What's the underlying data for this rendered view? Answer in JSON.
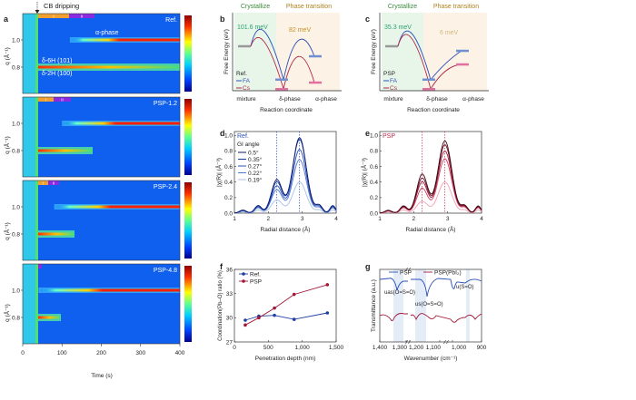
{
  "panel_a": {
    "label": "a",
    "annotation": "CB dripping",
    "ylabel": "q (Å⁻¹)",
    "xlabel": "Time (s)",
    "xticks": [
      "0",
      "100",
      "200",
      "300",
      "400"
    ],
    "yticks": [
      "1.0",
      "0.8"
    ],
    "stage_labels": [
      "I",
      "II"
    ],
    "alpha_label": "α-phase",
    "delta6h_label": "δ-6H (101)",
    "delta2h_label": "δ-2H (100)",
    "samples": [
      "Ref.",
      "PSP-1.2",
      "PSP-2.4",
      "PSP-4.8"
    ],
    "colormap": [
      "#00008f",
      "#0060ff",
      "#00e0ff",
      "#80ff80",
      "#ffe000",
      "#ff4000",
      "#8f0000"
    ]
  },
  "panel_b": {
    "label": "b",
    "region1": "Crystallize",
    "region2": "Phase transition",
    "barrier1": "101.6 meV",
    "barrier2": "82 meV",
    "ylabel": "Free Energy (eV)",
    "xlabel": "Reaction coordinate",
    "xcats": [
      "mixture",
      "δ-phase",
      "α-phase"
    ],
    "legend_title": "Ref.",
    "legend": [
      "FA",
      "Cs"
    ]
  },
  "panel_c": {
    "label": "c",
    "region1": "Crystallize",
    "region2": "Phase transition",
    "barrier1": "35.3 meV",
    "barrier2": "6 meV",
    "ylabel": "Free Energy (eV)",
    "xlabel": "Reaction coordinate",
    "xcats": [
      "mixture",
      "δ-phase",
      "α-phase"
    ],
    "legend_title": "PSP",
    "legend": [
      "FA",
      "Cs"
    ]
  },
  "chart_data": [
    {
      "panel": "d",
      "type": "line",
      "tag": "Ref.",
      "legend_title": "GI angle",
      "xlabel": "Radial distance (Å)",
      "ylabel": "|χ(R)| (Å⁻³)",
      "xlim": [
        1,
        4
      ],
      "ylim": [
        0,
        1.05
      ],
      "xticks": [
        "1",
        "2",
        "3",
        "4"
      ],
      "yticks": [
        "0.0",
        "0.2",
        "0.4",
        "0.6",
        "0.8",
        "1.0"
      ],
      "dashed_lines_x": [
        2.25,
        2.92
      ],
      "series": [
        {
          "name": "0.5°",
          "color": "#0a1a6e",
          "peak1": 0.43,
          "peak2": 0.97
        },
        {
          "name": "0.35°",
          "color": "#1a3a9e",
          "peak1": 0.4,
          "peak2": 0.95
        },
        {
          "name": "0.27°",
          "color": "#2a4fb8",
          "peak1": 0.35,
          "peak2": 0.82
        },
        {
          "name": "0.22°",
          "color": "#4f78d0",
          "peak1": 0.3,
          "peak2": 0.69
        },
        {
          "name": "0.19°",
          "color": "#a8bfe8",
          "peak1": 0.17,
          "peak2": 0.4
        }
      ]
    },
    {
      "panel": "e",
      "type": "line",
      "tag": "PSP",
      "xlabel": "Radial distance (Å)",
      "ylabel": "|χ(R)| (Å⁻³)",
      "xlim": [
        1,
        4
      ],
      "ylim": [
        0,
        1.05
      ],
      "xticks": [
        "1",
        "2",
        "3",
        "4"
      ],
      "yticks": [
        "0.0",
        "0.2",
        "0.4",
        "0.6",
        "0.8",
        "1.0"
      ],
      "dashed_lines_x": [
        2.25,
        2.92
      ],
      "series": [
        {
          "color": "#3a0a14",
          "peak1": 0.5,
          "peak2": 0.93
        },
        {
          "color": "#6e1028",
          "peak1": 0.45,
          "peak2": 0.88
        },
        {
          "color": "#a01838",
          "peak1": 0.4,
          "peak2": 0.8
        },
        {
          "color": "#d04060",
          "peak1": 0.32,
          "peak2": 0.7
        },
        {
          "color": "#f0a0b4",
          "peak1": 0.15,
          "peak2": 0.4
        }
      ]
    },
    {
      "panel": "f",
      "type": "line",
      "xlabel": "Penetration depth (nm)",
      "ylabel": "Coordination(Pb–O) ratio (%)",
      "xlim": [
        0,
        1500
      ],
      "ylim": [
        27,
        36
      ],
      "xticks": [
        "0",
        "500",
        "1,000",
        "1,500"
      ],
      "yticks": [
        "27",
        "30",
        "33",
        "36"
      ],
      "x": [
        160,
        360,
        590,
        880,
        1370
      ],
      "series": [
        {
          "name": "Ref.",
          "color": "#1f3fa0",
          "values": [
            29.7,
            30.2,
            30.3,
            29.8,
            30.6
          ]
        },
        {
          "name": "PSP",
          "color": "#a01838",
          "values": [
            29.1,
            30.0,
            31.2,
            32.9,
            34.1
          ]
        }
      ]
    },
    {
      "panel": "g",
      "type": "line",
      "xlabel": "Wavenumber (cm⁻¹)",
      "ylabel": "Transmittance (a.u.)",
      "xticks": [
        "1,400",
        "1,300",
        "1,200",
        "1,100",
        "1,000",
        "900"
      ],
      "annotations": [
        "uas(O=S=O)",
        "us(O=S=O)",
        "u(S=O)"
      ],
      "series": [
        {
          "name": "PSP",
          "color": "#2a4fb8"
        },
        {
          "name": "PSP(PbI₂)",
          "color": "#a01838"
        }
      ]
    }
  ],
  "panel_labels": {
    "d": "d",
    "e": "e",
    "f": "f",
    "g": "g"
  }
}
